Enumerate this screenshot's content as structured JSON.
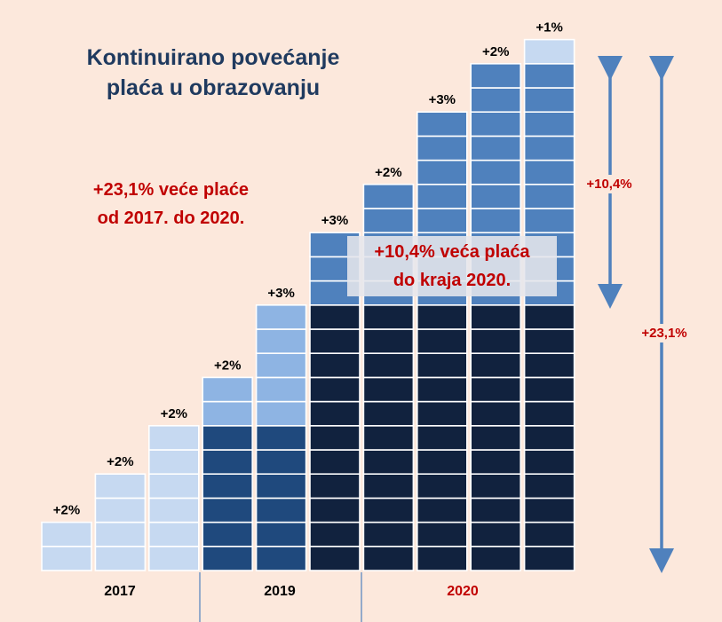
{
  "title_line1": "Kontinuirano povećanje",
  "title_line2": "plaća u obrazovanju",
  "note_total_line1": "+23,1% veće plaće",
  "note_total_line2": "od 2017. do 2020.",
  "note_box_line1": "+10,4% veća plaća",
  "note_box_line2": "do kraja 2020.",
  "arrow_short_label": "+10,4%",
  "arrow_long_label": "+23,1%",
  "colors": {
    "light_blue": "#c6d9f1",
    "mid_blue": "#8eb4e3",
    "medium_blue": "#4f81bd",
    "dark_blue": "#1f497d",
    "navy": "#11223e",
    "title": "#1f3a5f",
    "accent_red": "#c00000",
    "background": "#fce8dc",
    "arrow": "#4f81bd"
  },
  "chart_data": {
    "type": "bar",
    "subtype": "stacked",
    "categories": [
      "2017",
      "2017",
      "2017",
      "2019",
      "2019",
      "2020",
      "2020",
      "2020",
      "2020",
      "2020"
    ],
    "year_labels": [
      "2017",
      "2019",
      "2020"
    ],
    "increase_labels": [
      "+2%",
      "+2%",
      "+2%",
      "+2%",
      "+3%",
      "+3%",
      "+2%",
      "+3%",
      "+2%",
      "+1%"
    ],
    "bars": [
      {
        "segments": [
          {
            "tier": "light_blue",
            "units": 2
          }
        ],
        "label": "+2%"
      },
      {
        "segments": [
          {
            "tier": "light_blue",
            "units": 4
          }
        ],
        "label": "+2%"
      },
      {
        "segments": [
          {
            "tier": "light_blue",
            "units": 6
          }
        ],
        "label": "+2%"
      },
      {
        "segments": [
          {
            "tier": "dark_blue",
            "units": 6
          },
          {
            "tier": "mid_blue",
            "units": 2
          }
        ],
        "label": "+2%"
      },
      {
        "segments": [
          {
            "tier": "dark_blue",
            "units": 6
          },
          {
            "tier": "mid_blue",
            "units": 5
          }
        ],
        "label": "+3%"
      },
      {
        "segments": [
          {
            "tier": "navy",
            "units": 11
          },
          {
            "tier": "medium_blue",
            "units": 3
          }
        ],
        "label": "+3%"
      },
      {
        "segments": [
          {
            "tier": "navy",
            "units": 11
          },
          {
            "tier": "medium_blue",
            "units": 5
          }
        ],
        "label": "+2%"
      },
      {
        "segments": [
          {
            "tier": "navy",
            "units": 11
          },
          {
            "tier": "medium_blue",
            "units": 8
          }
        ],
        "label": "+3%"
      },
      {
        "segments": [
          {
            "tier": "navy",
            "units": 11
          },
          {
            "tier": "medium_blue",
            "units": 10
          }
        ],
        "label": "+2%"
      },
      {
        "segments": [
          {
            "tier": "navy",
            "units": 11
          },
          {
            "tier": "medium_blue",
            "units": 10
          },
          {
            "tier": "light_blue",
            "units": 1
          }
        ],
        "label": "+1%"
      }
    ],
    "ylim": [
      0,
      22
    ],
    "title": "Kontinuirano povećanje plaća u obrazovanju",
    "xlabel": "",
    "ylabel": ""
  }
}
